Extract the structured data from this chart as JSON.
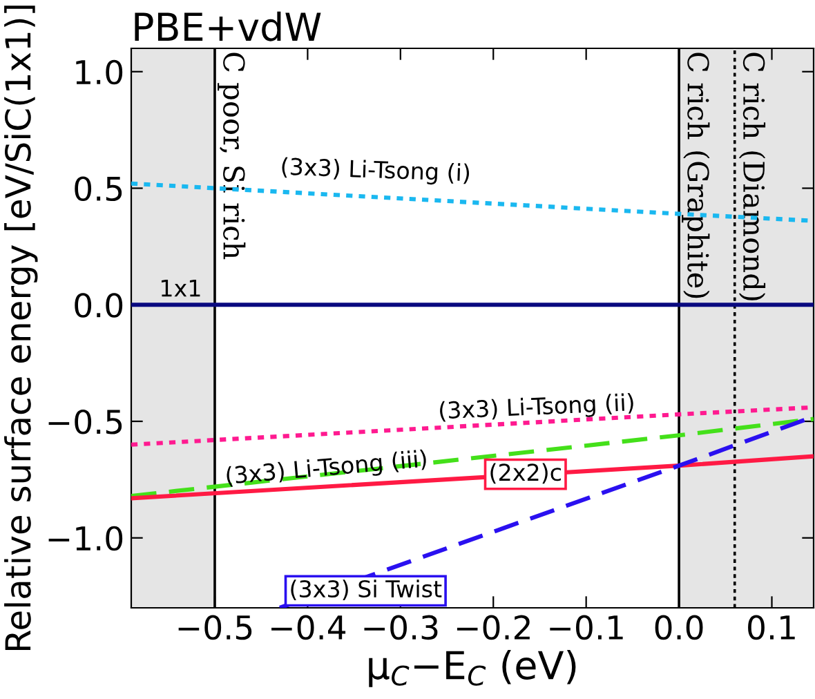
{
  "chart_data": {
    "type": "line",
    "title": "PBE+vdW",
    "xlabel": "μ$_{C}$−E$_{C}$ (eV)",
    "ylabel": "Relative surface energy [eV/SiC(1x1)]",
    "xlim": [
      -0.59,
      0.145
    ],
    "ylim": [
      -1.3,
      1.1
    ],
    "xticks": [
      {
        "value": -0.5,
        "label": "−0.5"
      },
      {
        "value": -0.4,
        "label": "−0.4"
      },
      {
        "value": -0.3,
        "label": "−0.3"
      },
      {
        "value": -0.2,
        "label": "−0.2"
      },
      {
        "value": -0.1,
        "label": "−0.1"
      },
      {
        "value": 0.0,
        "label": "0.0"
      },
      0.1
    ],
    "yticks": [
      {
        "value": -1.0,
        "label": "−1.0"
      },
      {
        "value": -0.5,
        "label": "−0.5"
      },
      {
        "value": 0.0,
        "label": "0.0"
      },
      0.5,
      {
        "value": 1.0,
        "label": "1.0"
      }
    ],
    "grid": false,
    "legend": false,
    "series": [
      {
        "name": "(3x3) Li-Tsong (i)",
        "color": "#1ab8f0",
        "line_style": "dotted",
        "x": [
          -0.59,
          0.0,
          0.145
        ],
        "values": [
          0.52,
          0.39,
          0.36
        ]
      },
      {
        "name": "1x1",
        "color": "#0a0a80",
        "line_style": "solid",
        "x": [
          -0.59,
          0.0,
          0.145
        ],
        "values": [
          0.0,
          0.0,
          0.0
        ]
      },
      {
        "name": "(3x3) Li-Tsong (ii)",
        "color": "#ff1a90",
        "line_style": "dotted",
        "x": [
          -0.59,
          0.0,
          0.145
        ],
        "values": [
          -0.6,
          -0.47,
          -0.44
        ]
      },
      {
        "name": "(3x3) Li-Tsong (iii)",
        "color": "#44e01a",
        "line_style": "dashed",
        "x": [
          -0.59,
          0.0,
          0.145
        ],
        "values": [
          -0.82,
          -0.56,
          -0.49
        ]
      },
      {
        "name": "(2x2)c",
        "color": "#ff1a44",
        "line_style": "solid",
        "x": [
          -0.59,
          0.0,
          0.145
        ],
        "values": [
          -0.83,
          -0.69,
          -0.65
        ]
      },
      {
        "name": "(3x3) Si Twist",
        "color": "#2a10f0",
        "line_style": "dashed",
        "x": [
          -0.43,
          0.0,
          0.145
        ],
        "values": [
          -1.3,
          -0.69,
          -0.48
        ]
      }
    ],
    "ref_lines": [
      {
        "axis": "x",
        "value": -0.5,
        "label": "C poor, Si rich",
        "color": "#000000",
        "line_style": "solid"
      },
      {
        "axis": "x",
        "value": 0.0,
        "label": "C rich (Graphite)",
        "color": "#000000",
        "line_style": "solid"
      },
      {
        "axis": "x",
        "value": 0.06,
        "label": "C rich (Diamond)",
        "color": "#000000",
        "line_style": "dotted"
      }
    ],
    "bands": [
      {
        "axis": "x",
        "from": -0.59,
        "to": -0.5,
        "color": "#e5e5e5"
      },
      {
        "axis": "x",
        "from": 0.0,
        "to": 0.145,
        "color": "#e5e5e5"
      }
    ]
  }
}
